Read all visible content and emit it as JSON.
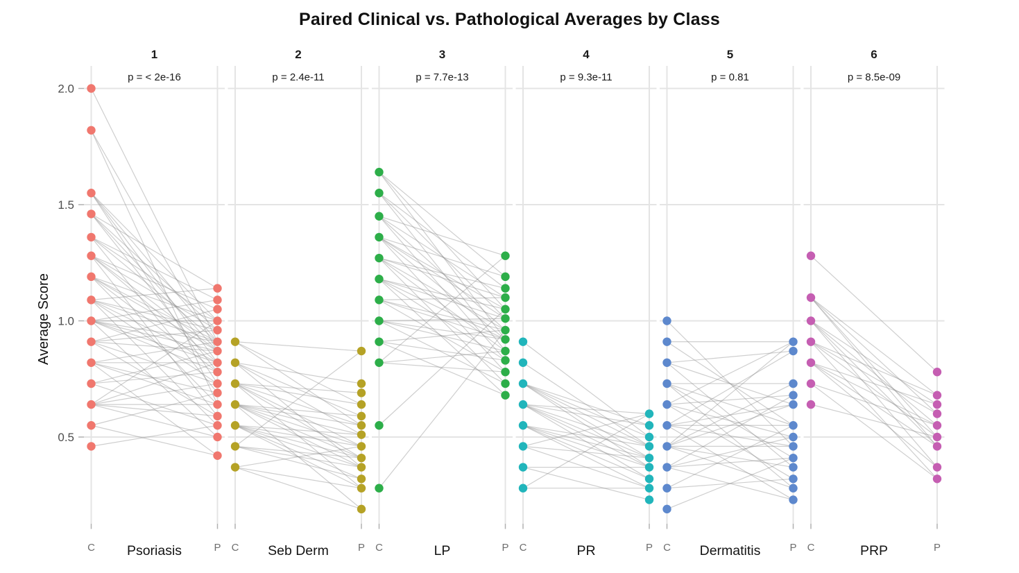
{
  "title": "Paired Clinical vs. Pathological Averages by Class",
  "ylabel": "Average Score",
  "chart_data": {
    "type": "scatter",
    "subtype": "paired-dot-plot",
    "x_group_labels": [
      "C",
      "P"
    ],
    "y_ticks": [
      "2.0",
      "1.5",
      "1.0",
      "0.5"
    ],
    "y_tick_values": [
      2.0,
      1.5,
      1.0,
      0.5
    ],
    "ylim": [
      0.12,
      2.1
    ],
    "grid": "on",
    "line_color": "#8a8a8a",
    "grid_color": "#e4e4e4",
    "tick_color": "#b0b0b0",
    "facets": [
      {
        "number": "1",
        "class": "Psoriasis",
        "p_label": "p = < 2e-16",
        "color": "#F0776E",
        "C": [
          2.0,
          1.82,
          1.55,
          1.46,
          1.36,
          1.28,
          1.19,
          1.09,
          1.0,
          0.91,
          0.82,
          0.73,
          0.64,
          0.55,
          0.46
        ],
        "P": [
          1.14,
          1.09,
          1.05,
          1.0,
          0.96,
          0.91,
          0.87,
          0.82,
          0.78,
          0.73,
          0.69,
          0.64,
          0.59,
          0.55,
          0.5,
          0.42
        ],
        "pairs": [
          [
            2.0,
            0.91
          ],
          [
            1.82,
            0.87
          ],
          [
            1.82,
            0.64
          ],
          [
            1.55,
            1.0
          ],
          [
            1.55,
            0.91
          ],
          [
            1.55,
            0.82
          ],
          [
            1.55,
            0.73
          ],
          [
            1.46,
            1.14
          ],
          [
            1.46,
            0.96
          ],
          [
            1.46,
            0.87
          ],
          [
            1.46,
            0.78
          ],
          [
            1.36,
            1.09
          ],
          [
            1.36,
            1.0
          ],
          [
            1.36,
            0.91
          ],
          [
            1.36,
            0.69
          ],
          [
            1.28,
            1.05
          ],
          [
            1.28,
            0.96
          ],
          [
            1.28,
            0.87
          ],
          [
            1.28,
            0.82
          ],
          [
            1.28,
            0.59
          ],
          [
            1.19,
            1.0
          ],
          [
            1.19,
            0.91
          ],
          [
            1.19,
            0.87
          ],
          [
            1.19,
            0.78
          ],
          [
            1.19,
            0.64
          ],
          [
            1.09,
            1.14
          ],
          [
            1.09,
            0.96
          ],
          [
            1.09,
            0.91
          ],
          [
            1.09,
            0.82
          ],
          [
            1.09,
            0.73
          ],
          [
            1.09,
            0.55
          ],
          [
            1.0,
            1.09
          ],
          [
            1.0,
            1.0
          ],
          [
            1.0,
            0.91
          ],
          [
            1.0,
            0.87
          ],
          [
            1.0,
            0.82
          ],
          [
            1.0,
            0.78
          ],
          [
            1.0,
            0.5
          ],
          [
            0.91,
            1.05
          ],
          [
            0.91,
            0.96
          ],
          [
            0.91,
            0.87
          ],
          [
            0.91,
            0.73
          ],
          [
            0.91,
            0.59
          ],
          [
            0.82,
            0.91
          ],
          [
            0.82,
            0.82
          ],
          [
            0.82,
            0.69
          ],
          [
            0.82,
            0.64
          ],
          [
            0.82,
            0.42
          ],
          [
            0.73,
            0.87
          ],
          [
            0.73,
            0.78
          ],
          [
            0.73,
            0.55
          ],
          [
            0.64,
            1.0
          ],
          [
            0.64,
            0.82
          ],
          [
            0.64,
            0.73
          ],
          [
            0.64,
            0.64
          ],
          [
            0.64,
            0.59
          ],
          [
            0.64,
            0.5
          ],
          [
            0.55,
            0.69
          ],
          [
            0.55,
            0.42
          ],
          [
            0.46,
            0.55
          ]
        ]
      },
      {
        "number": "2",
        "class": "Seb Derm",
        "p_label": "p = 2.4e-11",
        "color": "#B5A226",
        "C": [
          0.91,
          0.82,
          0.73,
          0.64,
          0.55,
          0.46,
          0.37
        ],
        "P": [
          0.87,
          0.73,
          0.69,
          0.64,
          0.59,
          0.55,
          0.51,
          0.46,
          0.41,
          0.37,
          0.32,
          0.28,
          0.19
        ],
        "pairs": [
          [
            0.91,
            0.87
          ],
          [
            0.91,
            0.64
          ],
          [
            0.91,
            0.55
          ],
          [
            0.82,
            0.73
          ],
          [
            0.82,
            0.59
          ],
          [
            0.82,
            0.51
          ],
          [
            0.82,
            0.37
          ],
          [
            0.73,
            0.69
          ],
          [
            0.73,
            0.64
          ],
          [
            0.73,
            0.55
          ],
          [
            0.73,
            0.46
          ],
          [
            0.73,
            0.41
          ],
          [
            0.73,
            0.28
          ],
          [
            0.64,
            0.59
          ],
          [
            0.64,
            0.55
          ],
          [
            0.64,
            0.51
          ],
          [
            0.64,
            0.46
          ],
          [
            0.64,
            0.41
          ],
          [
            0.64,
            0.37
          ],
          [
            0.64,
            0.19
          ],
          [
            0.55,
            0.51
          ],
          [
            0.55,
            0.46
          ],
          [
            0.55,
            0.41
          ],
          [
            0.55,
            0.37
          ],
          [
            0.55,
            0.32
          ],
          [
            0.55,
            0.28
          ],
          [
            0.46,
            0.87
          ],
          [
            0.46,
            0.41
          ],
          [
            0.46,
            0.37
          ],
          [
            0.46,
            0.32
          ],
          [
            0.37,
            0.46
          ],
          [
            0.37,
            0.28
          ],
          [
            0.37,
            0.19
          ]
        ]
      },
      {
        "number": "3",
        "class": "LP",
        "p_label": "p = 7.7e-13",
        "color": "#2DAE49",
        "C": [
          1.64,
          1.55,
          1.45,
          1.36,
          1.27,
          1.18,
          1.09,
          1.0,
          0.91,
          0.82,
          0.55,
          0.28
        ],
        "P": [
          1.28,
          1.19,
          1.14,
          1.1,
          1.05,
          1.01,
          0.96,
          0.92,
          0.87,
          0.83,
          0.78,
          0.73,
          0.68
        ],
        "pairs": [
          [
            1.64,
            1.19
          ],
          [
            1.64,
            1.05
          ],
          [
            1.64,
            0.92
          ],
          [
            1.55,
            1.14
          ],
          [
            1.55,
            1.01
          ],
          [
            1.55,
            0.87
          ],
          [
            1.45,
            1.28
          ],
          [
            1.45,
            1.1
          ],
          [
            1.45,
            0.96
          ],
          [
            1.45,
            0.83
          ],
          [
            1.36,
            1.19
          ],
          [
            1.36,
            1.05
          ],
          [
            1.36,
            1.01
          ],
          [
            1.36,
            0.92
          ],
          [
            1.36,
            0.78
          ],
          [
            1.27,
            1.14
          ],
          [
            1.27,
            1.1
          ],
          [
            1.27,
            0.96
          ],
          [
            1.27,
            0.87
          ],
          [
            1.27,
            0.73
          ],
          [
            1.18,
            1.05
          ],
          [
            1.18,
            1.01
          ],
          [
            1.18,
            0.92
          ],
          [
            1.18,
            0.83
          ],
          [
            1.18,
            0.68
          ],
          [
            1.09,
            1.1
          ],
          [
            1.09,
            0.96
          ],
          [
            1.09,
            0.92
          ],
          [
            1.09,
            0.78
          ],
          [
            1.0,
            1.01
          ],
          [
            1.0,
            0.92
          ],
          [
            1.0,
            0.87
          ],
          [
            1.0,
            0.73
          ],
          [
            0.91,
            0.96
          ],
          [
            0.91,
            0.83
          ],
          [
            0.91,
            0.68
          ],
          [
            0.82,
            1.28
          ],
          [
            0.82,
            0.87
          ],
          [
            0.82,
            0.78
          ],
          [
            0.55,
            1.05
          ],
          [
            0.28,
            0.96
          ]
        ]
      },
      {
        "number": "4",
        "class": "PR",
        "p_label": "p = 9.3e-11",
        "color": "#21B5BB",
        "C": [
          0.91,
          0.82,
          0.73,
          0.64,
          0.55,
          0.46,
          0.37,
          0.28
        ],
        "P": [
          0.6,
          0.55,
          0.5,
          0.46,
          0.41,
          0.37,
          0.32,
          0.28,
          0.23
        ],
        "pairs": [
          [
            0.91,
            0.5
          ],
          [
            0.82,
            0.46
          ],
          [
            0.73,
            0.55
          ],
          [
            0.73,
            0.5
          ],
          [
            0.73,
            0.46
          ],
          [
            0.73,
            0.41
          ],
          [
            0.73,
            0.37
          ],
          [
            0.64,
            0.6
          ],
          [
            0.64,
            0.55
          ],
          [
            0.64,
            0.46
          ],
          [
            0.64,
            0.41
          ],
          [
            0.64,
            0.37
          ],
          [
            0.64,
            0.32
          ],
          [
            0.55,
            0.46
          ],
          [
            0.55,
            0.41
          ],
          [
            0.55,
            0.37
          ],
          [
            0.55,
            0.32
          ],
          [
            0.55,
            0.28
          ],
          [
            0.46,
            0.6
          ],
          [
            0.46,
            0.41
          ],
          [
            0.46,
            0.28
          ],
          [
            0.37,
            0.37
          ],
          [
            0.37,
            0.23
          ],
          [
            0.28,
            0.6
          ],
          [
            0.28,
            0.28
          ]
        ]
      },
      {
        "number": "5",
        "class": "Dermatitis",
        "p_label": "p = 0.81",
        "color": "#5D88CD",
        "C": [
          1.0,
          0.91,
          0.82,
          0.73,
          0.64,
          0.55,
          0.46,
          0.37,
          0.28,
          0.19
        ],
        "P": [
          0.91,
          0.87,
          0.73,
          0.68,
          0.64,
          0.55,
          0.5,
          0.46,
          0.41,
          0.37,
          0.32,
          0.28,
          0.23
        ],
        "pairs": [
          [
            1.0,
            0.46
          ],
          [
            0.91,
            0.91
          ],
          [
            0.91,
            0.55
          ],
          [
            0.82,
            0.87
          ],
          [
            0.82,
            0.64
          ],
          [
            0.82,
            0.37
          ],
          [
            0.73,
            0.73
          ],
          [
            0.73,
            0.55
          ],
          [
            0.73,
            0.41
          ],
          [
            0.73,
            0.28
          ],
          [
            0.64,
            0.91
          ],
          [
            0.64,
            0.68
          ],
          [
            0.64,
            0.5
          ],
          [
            0.64,
            0.32
          ],
          [
            0.55,
            0.87
          ],
          [
            0.55,
            0.64
          ],
          [
            0.55,
            0.55
          ],
          [
            0.55,
            0.46
          ],
          [
            0.55,
            0.23
          ],
          [
            0.46,
            0.91
          ],
          [
            0.46,
            0.73
          ],
          [
            0.46,
            0.64
          ],
          [
            0.46,
            0.46
          ],
          [
            0.46,
            0.37
          ],
          [
            0.46,
            0.28
          ],
          [
            0.37,
            0.68
          ],
          [
            0.37,
            0.5
          ],
          [
            0.37,
            0.41
          ],
          [
            0.37,
            0.23
          ],
          [
            0.28,
            0.55
          ],
          [
            0.28,
            0.32
          ],
          [
            0.19,
            0.41
          ]
        ]
      },
      {
        "number": "6",
        "class": "PRP",
        "p_label": "p = 8.5e-09",
        "color": "#C55EB2",
        "C": [
          1.28,
          1.1,
          1.0,
          0.91,
          0.82,
          0.73,
          0.64
        ],
        "P": [
          0.78,
          0.68,
          0.64,
          0.6,
          0.55,
          0.5,
          0.46,
          0.37,
          0.32
        ],
        "pairs": [
          [
            1.28,
            0.78
          ],
          [
            1.1,
            0.68
          ],
          [
            1.1,
            0.6
          ],
          [
            1.1,
            0.5
          ],
          [
            1.1,
            0.46
          ],
          [
            1.0,
            0.64
          ],
          [
            1.0,
            0.55
          ],
          [
            1.0,
            0.46
          ],
          [
            1.0,
            0.37
          ],
          [
            0.91,
            0.68
          ],
          [
            0.91,
            0.6
          ],
          [
            0.91,
            0.5
          ],
          [
            0.91,
            0.32
          ],
          [
            0.82,
            0.64
          ],
          [
            0.82,
            0.55
          ],
          [
            0.82,
            0.46
          ],
          [
            0.82,
            0.37
          ],
          [
            0.73,
            0.55
          ],
          [
            0.73,
            0.32
          ],
          [
            0.64,
            0.5
          ]
        ]
      }
    ]
  }
}
